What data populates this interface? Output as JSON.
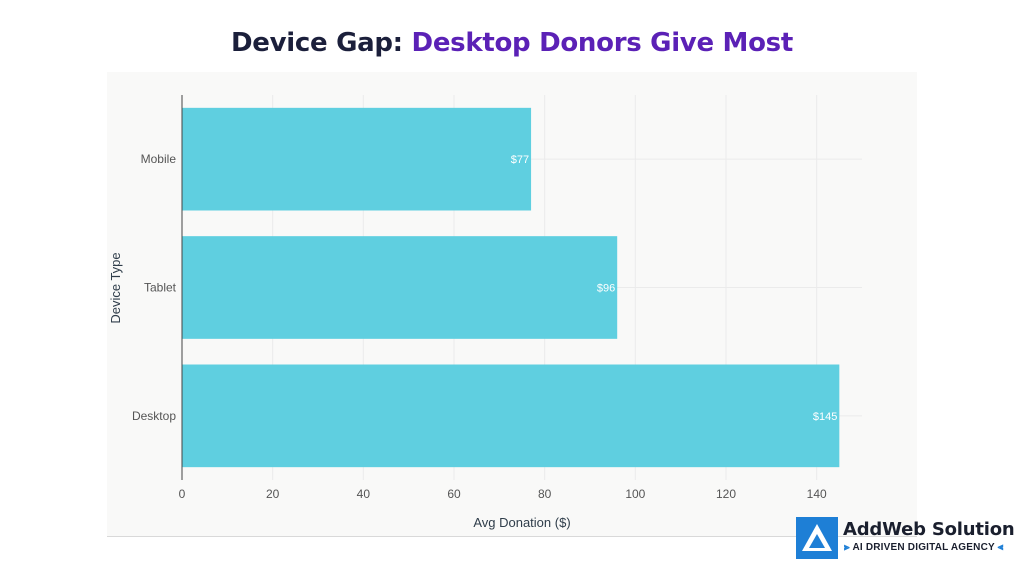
{
  "title": {
    "part1": "Device Gap: ",
    "part2": "Desktop Donors Give Most"
  },
  "colors": {
    "bar": "#5fcfe0",
    "title_dark": "#1b1f3b",
    "title_accent": "#5b21b6",
    "panel_bg": "#f9f9f8",
    "brand_blue": "#1e7fd6"
  },
  "chart_data": {
    "type": "bar",
    "orientation": "horizontal",
    "categories": [
      "Mobile",
      "Tablet",
      "Desktop"
    ],
    "values": [
      77,
      96,
      145
    ],
    "data_labels": [
      "$77",
      "$96",
      "$145"
    ],
    "xlabel": "Avg Donation ($)",
    "ylabel": "Device Type",
    "xlim": [
      0,
      150
    ],
    "xticks": [
      0,
      20,
      40,
      60,
      80,
      100,
      120,
      140
    ],
    "grid": true
  },
  "logo": {
    "name": "AddWeb Solution",
    "tagline": "AI DRIVEN DIGITAL AGENCY",
    "icon": "addweb-logo-icon"
  }
}
